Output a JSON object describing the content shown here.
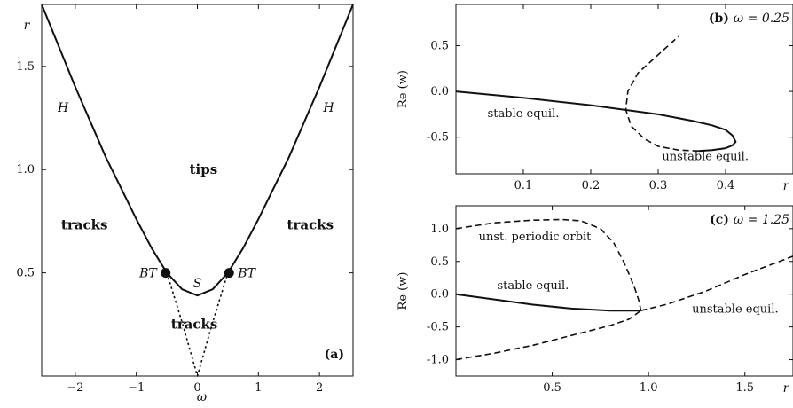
{
  "chart_data": [
    {
      "type": "line",
      "panel_label": "(a)",
      "xlabel": "ω",
      "ylabel": "r",
      "xlim": [
        -2.55,
        2.55
      ],
      "ylim": [
        0,
        1.8
      ],
      "x_ticks": [
        -2,
        -1,
        0,
        1,
        2
      ],
      "x_tick_labels": [
        "−2",
        "−1",
        "0",
        "1",
        "2"
      ],
      "y_ticks": [
        0.5,
        1.0,
        1.5
      ],
      "y_tick_labels": [
        "0.5",
        "1.0",
        "1.5"
      ],
      "series": [
        {
          "style": "solid",
          "x": [
            -2.55,
            -2.0,
            -1.5,
            -1.0,
            -0.75,
            -0.5,
            -0.25,
            0.0,
            0.25,
            0.5,
            0.75,
            1.0,
            1.5,
            2.0,
            2.55
          ],
          "y": [
            1.8,
            1.4,
            1.06,
            0.76,
            0.62,
            0.5,
            0.42,
            0.39,
            0.42,
            0.5,
            0.62,
            0.76,
            1.06,
            1.4,
            1.8
          ]
        },
        {
          "style": "dotted",
          "x": [
            -0.5,
            -0.25,
            0.0,
            0.25,
            0.5
          ],
          "y": [
            0.5,
            0.26,
            0.0,
            0.26,
            0.5
          ]
        }
      ],
      "points": [
        {
          "label": "BT",
          "x": -0.52,
          "y": 0.5
        },
        {
          "label": "BT",
          "x": 0.52,
          "y": 0.5
        }
      ],
      "annotations": [
        {
          "text": "H",
          "x": -2.2,
          "y": 1.28
        },
        {
          "text": "H",
          "x": 2.15,
          "y": 1.28
        },
        {
          "text": "tips",
          "x": 0.1,
          "y": 0.98
        },
        {
          "text": "tracks",
          "x": -1.85,
          "y": 0.71
        },
        {
          "text": "tracks",
          "x": 1.85,
          "y": 0.71
        },
        {
          "text": "S",
          "x": 0.0,
          "y": 0.43
        },
        {
          "text": "tracks",
          "x": -0.05,
          "y": 0.23
        }
      ]
    },
    {
      "type": "line",
      "panel_label": "(b)",
      "title": "ω = 0.25",
      "xlabel": "r",
      "ylabel": "Re (w)",
      "xlim": [
        0,
        0.5
      ],
      "ylim": [
        -0.9,
        0.95
      ],
      "x_ticks": [
        0.1,
        0.2,
        0.3,
        0.4
      ],
      "x_tick_labels": [
        "0.1",
        "0.2",
        "0.3",
        "0.4"
      ],
      "y_ticks": [
        0.5,
        0.0,
        -0.5
      ],
      "y_tick_labels": [
        "0.5",
        "0.0",
        "-0.5"
      ],
      "series": [
        {
          "style": "solid",
          "x": [
            0.0,
            0.1,
            0.2,
            0.25,
            0.3,
            0.35,
            0.38,
            0.4,
            0.41,
            0.415,
            0.41,
            0.4,
            0.38,
            0.36
          ],
          "y": [
            0.0,
            -0.07,
            -0.15,
            -0.2,
            -0.25,
            -0.32,
            -0.37,
            -0.42,
            -0.48,
            -0.55,
            -0.59,
            -0.62,
            -0.64,
            -0.65
          ]
        },
        {
          "style": "dashed",
          "x": [
            0.36,
            0.33,
            0.3,
            0.28,
            0.26,
            0.252,
            0.255,
            0.27,
            0.3,
            0.33
          ],
          "y": [
            -0.65,
            -0.64,
            -0.6,
            -0.52,
            -0.38,
            -0.2,
            0.0,
            0.2,
            0.4,
            0.6
          ]
        }
      ],
      "annotations": [
        {
          "text": "stable equil.",
          "x": 0.1,
          "y": -0.28
        },
        {
          "text": "unstable equil.",
          "x": 0.37,
          "y": -0.75
        }
      ]
    },
    {
      "type": "line",
      "panel_label": "(c)",
      "title": "ω = 1.25",
      "xlabel": "r",
      "ylabel": "Re (w)",
      "xlim": [
        0,
        1.75
      ],
      "ylim": [
        -1.25,
        1.35
      ],
      "x_ticks": [
        0.5,
        1.0,
        1.5
      ],
      "x_tick_labels": [
        "0.5",
        "1.0",
        "1.5"
      ],
      "y_ticks": [
        1.0,
        0.5,
        0.0,
        -0.5,
        -1.0
      ],
      "y_tick_labels": [
        "1.0",
        "0.5",
        "0.0",
        "-0.5",
        "-1.0"
      ],
      "series": [
        {
          "style": "solid",
          "x": [
            0.0,
            0.2,
            0.4,
            0.6,
            0.8,
            0.96
          ],
          "y": [
            0.0,
            -0.08,
            -0.16,
            -0.22,
            -0.25,
            -0.25
          ]
        },
        {
          "style": "dashed",
          "x": [
            0.0,
            0.2,
            0.4,
            0.55,
            0.65,
            0.75,
            0.82,
            0.87,
            0.9,
            0.93,
            0.95,
            0.96
          ],
          "y": [
            1.0,
            1.09,
            1.13,
            1.14,
            1.12,
            1.0,
            0.78,
            0.5,
            0.3,
            0.08,
            -0.1,
            -0.25
          ]
        },
        {
          "style": "dashed",
          "x": [
            0.0,
            0.2,
            0.4,
            0.6,
            0.8,
            0.9,
            0.96
          ],
          "y": [
            -1.0,
            -0.9,
            -0.78,
            -0.63,
            -0.48,
            -0.38,
            -0.25
          ]
        },
        {
          "style": "dashed",
          "x": [
            0.96,
            1.1,
            1.3,
            1.5,
            1.75
          ],
          "y": [
            -0.25,
            -0.15,
            0.05,
            0.3,
            0.58
          ]
        }
      ],
      "annotations": [
        {
          "text": "unst. periodic orbit",
          "x": 0.41,
          "y": 0.82
        },
        {
          "text": "stable equil.",
          "x": 0.4,
          "y": 0.08
        },
        {
          "text": "unstable equil.",
          "x": 1.45,
          "y": -0.28
        }
      ]
    }
  ]
}
